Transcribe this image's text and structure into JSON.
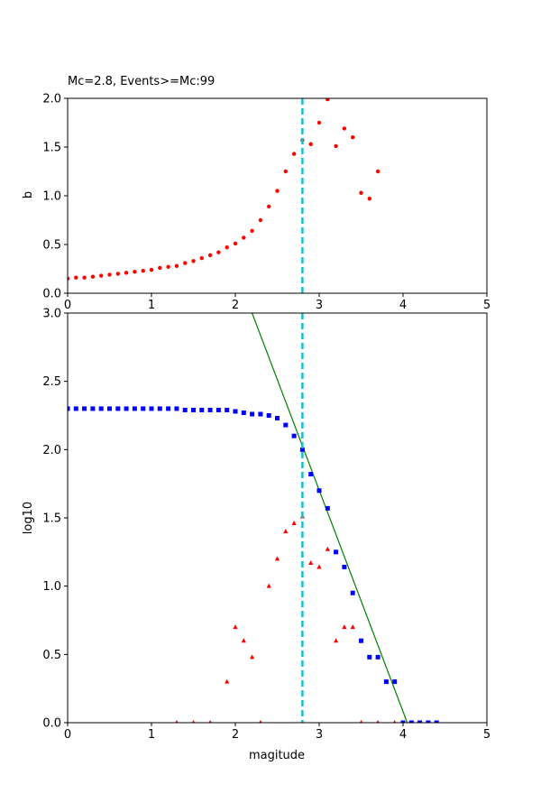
{
  "chart_data": [
    {
      "type": "scatter",
      "title": "Mc=2.8, Events>=Mc:99",
      "xlabel": "",
      "ylabel": "b",
      "xlim": [
        0,
        5
      ],
      "ylim": [
        0,
        2.0
      ],
      "xticks": [
        "0",
        "1",
        "2",
        "3",
        "4",
        "5"
      ],
      "yticks": [
        "0.0",
        "0.5",
        "1.0",
        "1.5",
        "2.0"
      ],
      "grid": false,
      "colors": {
        "b_values": "#ff0000",
        "mc_line": "#17becf"
      },
      "mc_line_x": 2.8,
      "series": [
        {
          "marker": "dot",
          "x": [
            0.0,
            0.1,
            0.2,
            0.3,
            0.4,
            0.5,
            0.6,
            0.7,
            0.8,
            0.9,
            1.0,
            1.1,
            1.2,
            1.3,
            1.4,
            1.5,
            1.6,
            1.7,
            1.8,
            1.9,
            2.0,
            2.1,
            2.2,
            2.3,
            2.4,
            2.5,
            2.6,
            2.7,
            2.8,
            2.9,
            3.0,
            3.1,
            3.2,
            3.3,
            3.4,
            3.5,
            3.6,
            3.7
          ],
          "y": [
            0.15,
            0.16,
            0.16,
            0.17,
            0.18,
            0.19,
            0.2,
            0.21,
            0.22,
            0.23,
            0.24,
            0.26,
            0.27,
            0.28,
            0.31,
            0.33,
            0.36,
            0.39,
            0.42,
            0.47,
            0.51,
            0.57,
            0.64,
            0.75,
            0.89,
            1.05,
            1.25,
            1.43,
            1.57,
            1.53,
            1.75,
            1.99,
            1.51,
            1.69,
            1.6,
            1.03,
            0.97,
            1.25
          ]
        }
      ]
    },
    {
      "type": "scatter",
      "title": "",
      "xlabel": "magitude",
      "ylabel": "log10",
      "xlim": [
        0,
        5
      ],
      "ylim": [
        0,
        3.0
      ],
      "xticks": [
        "0",
        "1",
        "2",
        "3",
        "4",
        "5"
      ],
      "yticks": [
        "0.0",
        "0.5",
        "1.0",
        "1.5",
        "2.0",
        "2.5",
        "3.0"
      ],
      "grid": false,
      "colors": {
        "cumulative": "#0000ff",
        "noncumulative": "#ff0000",
        "fit": "#008000",
        "mc_line": "#17becf"
      },
      "mc_line_x": 2.8,
      "fit_line": {
        "x": [
          2.2,
          4.05
        ],
        "y": [
          3.0,
          0.0
        ]
      },
      "series": [
        {
          "marker": "square",
          "x": [
            0.0,
            0.1,
            0.2,
            0.3,
            0.4,
            0.5,
            0.6,
            0.7,
            0.8,
            0.9,
            1.0,
            1.1,
            1.2,
            1.3,
            1.4,
            1.5,
            1.6,
            1.7,
            1.8,
            1.9,
            2.0,
            2.1,
            2.2,
            2.3,
            2.4,
            2.5,
            2.6,
            2.7,
            2.8,
            2.9,
            3.0,
            3.1,
            3.2,
            3.3,
            3.4,
            3.5,
            3.6,
            3.7,
            3.8,
            3.9,
            4.0,
            4.1,
            4.2,
            4.3,
            4.4
          ],
          "y": [
            2.3,
            2.3,
            2.3,
            2.3,
            2.3,
            2.3,
            2.3,
            2.3,
            2.3,
            2.3,
            2.3,
            2.3,
            2.3,
            2.3,
            2.29,
            2.29,
            2.29,
            2.29,
            2.29,
            2.29,
            2.28,
            2.27,
            2.26,
            2.26,
            2.25,
            2.23,
            2.18,
            2.1,
            2.0,
            1.82,
            1.7,
            1.57,
            1.25,
            1.14,
            0.95,
            0.6,
            0.48,
            0.48,
            0.3,
            0.3,
            0.0,
            0.0,
            0.0,
            0.0,
            0.0
          ]
        },
        {
          "marker": "triangle",
          "x": [
            1.3,
            1.5,
            1.7,
            1.9,
            2.0,
            2.1,
            2.2,
            2.3,
            2.4,
            2.5,
            2.6,
            2.7,
            2.8,
            2.9,
            3.0,
            3.1,
            3.2,
            3.3,
            3.4,
            3.5,
            3.7,
            3.9
          ],
          "y": [
            0.0,
            0.0,
            0.0,
            0.3,
            0.7,
            0.6,
            0.48,
            0.0,
            1.0,
            1.2,
            1.4,
            1.46,
            1.51,
            1.17,
            1.14,
            1.27,
            0.6,
            0.7,
            0.7,
            0.0,
            0.0,
            0.0
          ]
        }
      ]
    }
  ]
}
